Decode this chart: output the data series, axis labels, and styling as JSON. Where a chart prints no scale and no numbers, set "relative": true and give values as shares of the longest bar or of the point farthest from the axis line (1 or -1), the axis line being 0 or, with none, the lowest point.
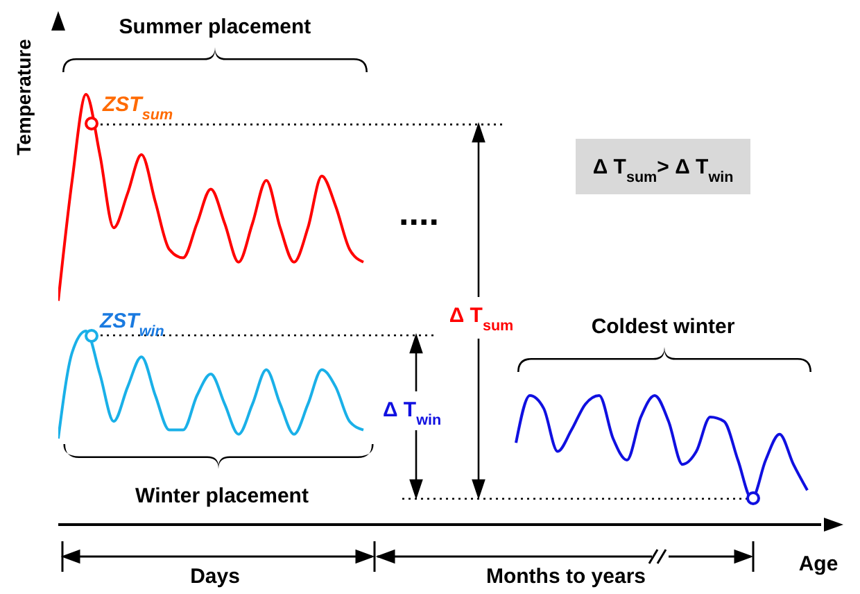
{
  "chart_data": {
    "type": "line",
    "relative": true,
    "ylabel": "Temperature",
    "xlabel": "Age",
    "marker": "none",
    "line_style": "solid",
    "categories": [
      null,
      null,
      null,
      null,
      null,
      null,
      null,
      null,
      null,
      null,
      null,
      null,
      null,
      null,
      null,
      null,
      null,
      null,
      null,
      null,
      null,
      null,
      null,
      null,
      null,
      null,
      null,
      null,
      null,
      null,
      null,
      null,
      null,
      null,
      null,
      null,
      null,
      null,
      null,
      null,
      null,
      null,
      null,
      null,
      null,
      null,
      null,
      null,
      null,
      null,
      null,
      null,
      null,
      null,
      null,
      null
    ],
    "series": [
      {
        "color": "#ff0000",
        "values": [
          0.52,
          0.8,
          1,
          0.86,
          0.69,
          0.77,
          0.86,
          0.75,
          0.64,
          0.62,
          0.7,
          0.78,
          0.7,
          0.61,
          0.7,
          0.8,
          0.69,
          0.61,
          0.69,
          0.81,
          0.74,
          0.64,
          0.61,
          null,
          null,
          null,
          null,
          null,
          null,
          null,
          null,
          null,
          null,
          null,
          null,
          null,
          null,
          null,
          null,
          null,
          null,
          null,
          null,
          null,
          null,
          null,
          null,
          null,
          null,
          null,
          null,
          null,
          null,
          null,
          null,
          null
        ]
      },
      {
        "color": "#1ab0e8",
        "values": [
          0.2,
          0.4,
          0.45,
          0.35,
          0.24,
          0.32,
          0.39,
          0.3,
          0.22,
          0.22,
          0.3,
          0.35,
          0.28,
          0.21,
          0.28,
          0.36,
          0.28,
          0.21,
          0.28,
          0.36,
          0.32,
          0.24,
          0.22,
          null,
          null,
          null,
          null,
          null,
          null,
          null,
          null,
          null,
          null,
          null,
          null,
          null,
          null,
          null,
          null,
          null,
          null,
          null,
          null,
          null,
          null,
          null,
          null,
          null,
          null,
          null,
          null,
          null,
          null,
          null,
          null,
          null
        ]
      },
      {
        "color": "#1010e0",
        "values": [
          null,
          null,
          null,
          null,
          null,
          null,
          null,
          null,
          null,
          null,
          null,
          null,
          null,
          null,
          null,
          null,
          null,
          null,
          null,
          null,
          null,
          null,
          null,
          null,
          null,
          null,
          null,
          null,
          null,
          null,
          null,
          null,
          null,
          0.19,
          0.3,
          0.27,
          0.17,
          0.22,
          0.28,
          0.3,
          0.2,
          0.15,
          0.25,
          0.3,
          0.24,
          0.14,
          0.17,
          0.25,
          0.24,
          0.15,
          0.06,
          0.15,
          0.21,
          0.14,
          0.08,
          null
        ]
      }
    ],
    "ref_lines": [
      {
        "axis": "y",
        "value": 0.93,
        "line_style": "dotted",
        "color": "#000000"
      },
      {
        "axis": "y",
        "value": 0.44,
        "line_style": "dotted",
        "color": "#000000"
      },
      {
        "axis": "y",
        "value": 0.06,
        "line_style": "dotted",
        "color": "#000000"
      }
    ],
    "annotations": [
      "Summer placement",
      "ZST$_{sum}$",
      "ZST$_{win}$",
      "Winter placement",
      "Coldest winter",
      "Δ T$_{sum}$",
      "Δ T$_{win}$",
      "Δ T$_{sum}$> Δ T$_{win}$",
      "....",
      "Days",
      "Months to years"
    ]
  }
}
